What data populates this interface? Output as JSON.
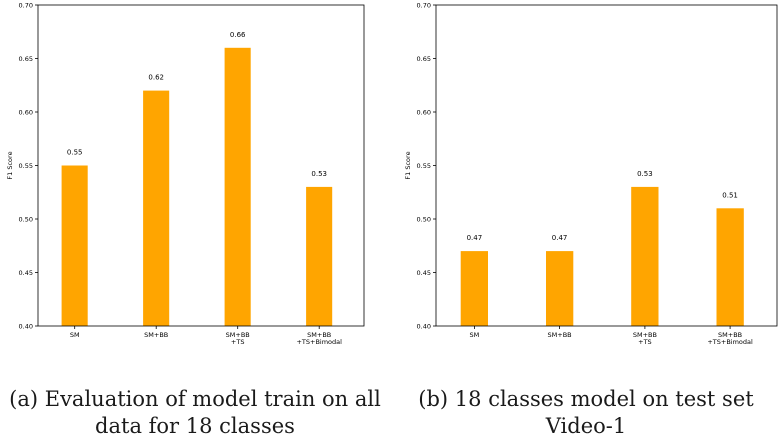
{
  "colors": {
    "bar": "#FFA500",
    "axis": "#000000"
  },
  "chart_data": [
    {
      "type": "bar",
      "categories": [
        "SM",
        "SM+BB",
        "SM+BB\n+TS",
        "SM+BB\n+TS+Bimodal"
      ],
      "values": [
        0.55,
        0.62,
        0.66,
        0.53
      ],
      "data_labels": [
        "0.55",
        "0.62",
        "0.66",
        "0.53"
      ],
      "ylabel": "F1 Score",
      "ylim": [
        0.4,
        0.7
      ],
      "yticks": [
        "0.40",
        "0.45",
        "0.50",
        "0.55",
        "0.60",
        "0.65",
        "0.70"
      ],
      "grid": false,
      "caption": "(a) Evaluation of model train on all\ndata for 18 classes"
    },
    {
      "type": "bar",
      "categories": [
        "SM",
        "SM+BB",
        "SM+BB\n+TS",
        "SM+BB\n+TS+Bimodal"
      ],
      "values": [
        0.47,
        0.47,
        0.53,
        0.51
      ],
      "data_labels": [
        "0.47",
        "0.47",
        "0.53",
        "0.51"
      ],
      "ylabel": "F1 Score",
      "ylim": [
        0.4,
        0.7
      ],
      "yticks": [
        "0.40",
        "0.45",
        "0.50",
        "0.55",
        "0.60",
        "0.65",
        "0.70"
      ],
      "grid": false,
      "caption": "(b) 18 classes model on test set\nVideo-1"
    }
  ]
}
